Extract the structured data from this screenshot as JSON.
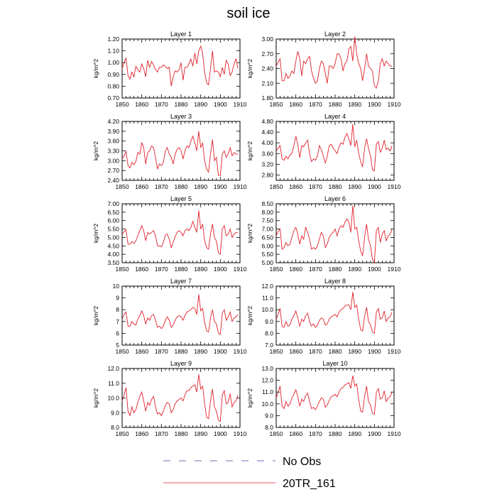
{
  "title": "soil ice",
  "legend": {
    "placement": "bottom-center",
    "items": [
      {
        "label": "No Obs",
        "style": "dashed",
        "color": "#4040a0"
      },
      {
        "label": "20TR_161",
        "style": "solid",
        "color": "#e0202a"
      }
    ]
  },
  "chart_data": [
    {
      "type": "line",
      "title": "Layer 1",
      "ylabel": "kg/m^2",
      "xlim": [
        1850,
        1910
      ],
      "ylim": [
        0.7,
        1.2
      ],
      "xticks": [
        "1850",
        "1860",
        "1870",
        "1880",
        "1890",
        "1900",
        "1910"
      ],
      "yticks": [
        "0.70",
        "0.80",
        "0.90",
        "1.00",
        "1.10",
        "1.20"
      ],
      "color": "#e0202a",
      "series": [
        {
          "x_start": 1850,
          "values": [
            0.95,
            1.0,
            1.04,
            0.89,
            0.86,
            0.92,
            0.88,
            0.97,
            0.94,
            0.92,
            0.99,
            0.95,
            0.88,
            1.02,
            0.96,
            1.01,
            0.98,
            0.94,
            0.92,
            0.96,
            0.96,
            0.98,
            0.97,
            0.95,
            0.96,
            0.8,
            0.88,
            0.93,
            0.92,
            0.94,
            1.0,
            0.85,
            0.96,
            0.96,
            0.99,
            1.03,
            0.97,
            1.08,
            0.99,
            1.1,
            1.14,
            1.08,
            0.92,
            0.83,
            0.81,
            0.95,
            1.1,
            0.92,
            0.93,
            0.92,
            0.88,
            0.96,
            0.9,
            1.02,
            0.99,
            0.89,
            0.92,
            0.99,
            1.03,
            0.95
          ]
        }
      ]
    },
    {
      "type": "line",
      "title": "Layer 2",
      "ylabel": "kg/m^2",
      "xlim": [
        1850,
        1910
      ],
      "ylim": [
        1.8,
        3.0
      ],
      "xticks": [
        "1850",
        "1860",
        "1870",
        "1880",
        "1890",
        "1900",
        "1910"
      ],
      "yticks": [
        "1.80",
        "2.10",
        "2.40",
        "2.70",
        "3.00"
      ],
      "color": "#e0202a",
      "series": [
        {
          "x_start": 1850,
          "values": [
            2.45,
            2.53,
            2.6,
            2.15,
            2.15,
            2.3,
            2.2,
            2.25,
            2.35,
            2.3,
            2.55,
            2.75,
            2.6,
            2.25,
            2.55,
            2.5,
            2.6,
            2.65,
            2.35,
            2.2,
            2.1,
            2.15,
            2.4,
            2.55,
            2.5,
            2.3,
            2.1,
            2.45,
            2.45,
            2.4,
            2.5,
            2.7,
            2.7,
            2.6,
            2.35,
            2.5,
            2.55,
            2.8,
            2.85,
            2.55,
            3.05,
            2.7,
            2.5,
            2.4,
            2.15,
            2.4,
            2.7,
            2.45,
            2.4,
            2.35,
            2.05,
            2.0,
            2.15,
            2.5,
            2.6,
            2.45,
            2.55,
            2.5,
            2.45,
            2.45
          ]
        }
      ]
    },
    {
      "type": "line",
      "title": "Layer 3",
      "ylabel": "kg/m^2",
      "xlim": [
        1850,
        1910
      ],
      "ylim": [
        2.4,
        4.2
      ],
      "xticks": [
        "1850",
        "1860",
        "1870",
        "1880",
        "1890",
        "1900",
        "1910"
      ],
      "yticks": [
        "2.40",
        "2.70",
        "3.00",
        "3.30",
        "3.60",
        "3.90",
        "4.20"
      ],
      "color": "#e0202a",
      "series": [
        {
          "x_start": 1850,
          "values": [
            3.05,
            3.15,
            3.28,
            2.85,
            2.78,
            2.95,
            2.88,
            2.98,
            3.25,
            3.2,
            3.55,
            3.4,
            2.9,
            3.25,
            3.3,
            3.45,
            3.4,
            3.1,
            2.75,
            2.9,
            2.85,
            2.95,
            3.3,
            3.4,
            3.2,
            3.1,
            2.9,
            3.2,
            3.35,
            3.4,
            3.3,
            3.05,
            3.3,
            3.45,
            3.4,
            3.6,
            3.75,
            3.55,
            3.3,
            3.9,
            3.4,
            3.55,
            3.0,
            2.75,
            2.65,
            3.2,
            3.65,
            3.0,
            3.1,
            2.55,
            2.55,
            3.2,
            3.3,
            3.1,
            3.2,
            3.4,
            3.15,
            3.25,
            3.2,
            3.2
          ]
        }
      ]
    },
    {
      "type": "line",
      "title": "Layer 4",
      "ylabel": "kg/m^2",
      "xlim": [
        1850,
        1910
      ],
      "ylim": [
        2.6,
        4.8
      ],
      "xticks": [
        "1850",
        "1860",
        "1870",
        "1880",
        "1890",
        "1900",
        "1910"
      ],
      "yticks": [
        "2.80",
        "3.20",
        "3.60",
        "4.00",
        "4.40",
        "4.80"
      ],
      "color": "#e0202a",
      "series": [
        {
          "x_start": 1850,
          "values": [
            3.7,
            3.8,
            3.9,
            3.4,
            3.35,
            3.5,
            3.4,
            3.55,
            3.6,
            3.9,
            4.25,
            3.95,
            3.45,
            3.9,
            3.85,
            4.0,
            4.1,
            3.6,
            3.3,
            3.4,
            3.35,
            3.5,
            3.9,
            3.75,
            3.5,
            3.25,
            3.5,
            3.9,
            3.95,
            3.8,
            3.7,
            3.6,
            3.85,
            4.0,
            3.95,
            4.2,
            4.35,
            4.15,
            3.9,
            4.7,
            3.85,
            4.1,
            3.6,
            3.3,
            3.1,
            3.8,
            4.15,
            3.8,
            3.5,
            3.0,
            2.95,
            3.95,
            4.05,
            3.65,
            3.8,
            4.1,
            3.75,
            3.8,
            3.7,
            3.9
          ]
        }
      ]
    },
    {
      "type": "line",
      "title": "Layer 5",
      "ylabel": "kg/m^2",
      "xlim": [
        1850,
        1910
      ],
      "ylim": [
        3.5,
        7.0
      ],
      "xticks": [
        "1850",
        "1860",
        "1870",
        "1880",
        "1890",
        "1900",
        "1910"
      ],
      "yticks": [
        "3.50",
        "4.00",
        "4.50",
        "5.00",
        "5.50",
        "6.00",
        "6.50",
        "7.00"
      ],
      "color": "#e0202a",
      "series": [
        {
          "x_start": 1850,
          "values": [
            5.2,
            5.35,
            5.45,
            4.6,
            4.6,
            4.75,
            4.65,
            4.8,
            5.1,
            5.4,
            5.7,
            5.4,
            4.8,
            5.3,
            5.2,
            5.3,
            5.4,
            5.1,
            4.5,
            4.5,
            4.45,
            4.7,
            5.15,
            5.2,
            4.9,
            4.4,
            4.7,
            5.05,
            5.3,
            5.4,
            5.3,
            5.1,
            5.4,
            5.5,
            5.4,
            5.6,
            5.95,
            5.6,
            5.3,
            6.6,
            5.5,
            5.8,
            4.8,
            4.4,
            4.3,
            5.2,
            5.8,
            5.0,
            4.8,
            4.1,
            4.0,
            5.5,
            5.7,
            5.1,
            5.2,
            5.5,
            5.0,
            5.2,
            5.3,
            5.3
          ]
        }
      ]
    },
    {
      "type": "line",
      "title": "Layer 6",
      "ylabel": "kg/m^2",
      "xlim": [
        1850,
        1910
      ],
      "ylim": [
        5.0,
        8.5
      ],
      "xticks": [
        "1850",
        "1860",
        "1870",
        "1880",
        "1890",
        "1900",
        "1910"
      ],
      "yticks": [
        "5.00",
        "5.50",
        "6.00",
        "6.50",
        "7.00",
        "7.50",
        "8.00",
        "8.50"
      ],
      "color": "#e0202a",
      "series": [
        {
          "x_start": 1850,
          "values": [
            6.6,
            6.85,
            7.0,
            5.8,
            5.9,
            6.2,
            6.0,
            6.1,
            6.5,
            6.9,
            7.1,
            6.7,
            6.1,
            6.6,
            6.4,
            7.1,
            6.8,
            6.4,
            5.8,
            5.9,
            5.8,
            6.0,
            6.4,
            6.8,
            6.6,
            5.9,
            6.1,
            6.5,
            6.7,
            6.8,
            7.0,
            6.6,
            7.0,
            7.2,
            7.1,
            7.4,
            7.6,
            7.4,
            6.8,
            8.4,
            7.0,
            7.1,
            6.3,
            5.7,
            5.4,
            6.5,
            7.3,
            6.4,
            6.0,
            5.2,
            5.0,
            6.9,
            7.1,
            6.2,
            6.7,
            6.9,
            6.3,
            6.6,
            6.7,
            7.0
          ]
        }
      ]
    },
    {
      "type": "line",
      "title": "Layer 7",
      "ylabel": "kg/m^2",
      "xlim": [
        1850,
        1910
      ],
      "ylim": [
        5,
        10
      ],
      "xticks": [
        "1850",
        "1860",
        "1870",
        "1880",
        "1890",
        "1900",
        "1910"
      ],
      "yticks": [
        "5",
        "6",
        "7",
        "8",
        "9",
        "10"
      ],
      "color": "#e0202a",
      "series": [
        {
          "x_start": 1850,
          "values": [
            7.2,
            7.6,
            7.8,
            6.6,
            6.6,
            7.0,
            6.8,
            6.7,
            7.2,
            7.5,
            7.9,
            7.5,
            6.8,
            7.3,
            7.1,
            7.5,
            7.6,
            7.1,
            6.5,
            6.6,
            6.4,
            6.6,
            7.1,
            7.4,
            7.1,
            6.5,
            6.7,
            7.1,
            7.4,
            7.5,
            7.4,
            7.1,
            7.5,
            7.8,
            7.9,
            8.0,
            8.2,
            8.1,
            7.6,
            9.3,
            7.9,
            8.1,
            6.9,
            6.2,
            6.1,
            7.3,
            8.0,
            7.0,
            6.8,
            6.0,
            5.9,
            7.7,
            8.0,
            7.1,
            7.4,
            7.8,
            7.0,
            7.3,
            7.4,
            7.6
          ]
        }
      ]
    },
    {
      "type": "line",
      "title": "Layer 8",
      "ylabel": "kg/m^2",
      "xlim": [
        1850,
        1910
      ],
      "ylim": [
        7.0,
        12.0
      ],
      "xticks": [
        "1850",
        "1860",
        "1870",
        "1880",
        "1890",
        "1900",
        "1910"
      ],
      "yticks": [
        "7.0",
        "8.0",
        "9.0",
        "10.0",
        "11.0",
        "12.0"
      ],
      "color": "#e0202a",
      "series": [
        {
          "x_start": 1850,
          "values": [
            9.2,
            9.6,
            10.1,
            8.6,
            8.5,
            9.0,
            8.6,
            8.7,
            9.2,
            9.5,
            9.9,
            9.3,
            8.6,
            9.2,
            9.0,
            9.5,
            9.7,
            9.0,
            8.6,
            8.8,
            8.5,
            8.7,
            9.1,
            9.3,
            9.2,
            8.7,
            8.8,
            9.2,
            9.4,
            9.5,
            9.6,
            9.4,
            9.8,
            10.0,
            10.1,
            10.3,
            10.4,
            10.4,
            10.0,
            11.5,
            10.2,
            10.4,
            9.2,
            8.3,
            8.2,
            9.4,
            10.2,
            9.0,
            8.7,
            8.1,
            8.0,
            9.8,
            10.1,
            9.2,
            9.3,
            9.9,
            9.0,
            9.3,
            9.4,
            9.8
          ]
        }
      ]
    },
    {
      "type": "line",
      "title": "Layer 9",
      "ylabel": "kg/m^2",
      "xlim": [
        1850,
        1910
      ],
      "ylim": [
        8.0,
        12.0
      ],
      "xticks": [
        "1850",
        "1860",
        "1870",
        "1880",
        "1890",
        "1900",
        "1910"
      ],
      "yticks": [
        "8.0",
        "9.0",
        "10.0",
        "11.0",
        "12.0"
      ],
      "color": "#e0202a",
      "series": [
        {
          "x_start": 1850,
          "values": [
            9.8,
            10.2,
            10.7,
            9.1,
            8.8,
            9.4,
            9.0,
            9.2,
            9.7,
            10.1,
            10.4,
            9.8,
            9.1,
            9.7,
            9.5,
            9.9,
            10.1,
            9.4,
            8.9,
            9.0,
            8.8,
            9.1,
            9.5,
            9.7,
            9.6,
            9.0,
            9.2,
            9.6,
            9.8,
            9.9,
            10.0,
            9.8,
            10.2,
            10.5,
            10.5,
            10.7,
            10.8,
            10.9,
            10.4,
            11.6,
            10.6,
            10.8,
            9.6,
            8.7,
            8.6,
            9.8,
            10.6,
            9.4,
            9.1,
            8.5,
            8.4,
            10.2,
            10.5,
            9.6,
            9.7,
            10.3,
            9.4,
            9.7,
            9.8,
            10.2
          ]
        }
      ]
    },
    {
      "type": "line",
      "title": "Layer 10",
      "ylabel": "kg/m^2",
      "xlim": [
        1850,
        1910
      ],
      "ylim": [
        8.0,
        13.0
      ],
      "xticks": [
        "1850",
        "1860",
        "1870",
        "1880",
        "1890",
        "1900",
        "1910"
      ],
      "yticks": [
        "8.0",
        "9.0",
        "10.0",
        "11.0",
        "12.0",
        "13.0"
      ],
      "color": "#e0202a",
      "series": [
        {
          "x_start": 1850,
          "values": [
            10.5,
            11.0,
            11.5,
            9.8,
            9.6,
            10.2,
            9.8,
            10.0,
            10.5,
            10.8,
            11.2,
            10.6,
            9.8,
            10.4,
            10.2,
            10.7,
            10.9,
            10.2,
            9.6,
            9.7,
            9.5,
            9.8,
            10.2,
            10.5,
            10.4,
            9.7,
            9.9,
            10.3,
            10.6,
            10.7,
            10.8,
            10.6,
            11.0,
            11.3,
            11.4,
            11.6,
            11.7,
            11.8,
            11.3,
            12.4,
            11.5,
            11.7,
            10.4,
            9.4,
            9.3,
            10.6,
            11.5,
            10.2,
            9.9,
            9.2,
            9.1,
            11.0,
            11.3,
            10.4,
            10.5,
            11.1,
            10.2,
            10.5,
            10.6,
            11.0
          ]
        }
      ]
    }
  ]
}
